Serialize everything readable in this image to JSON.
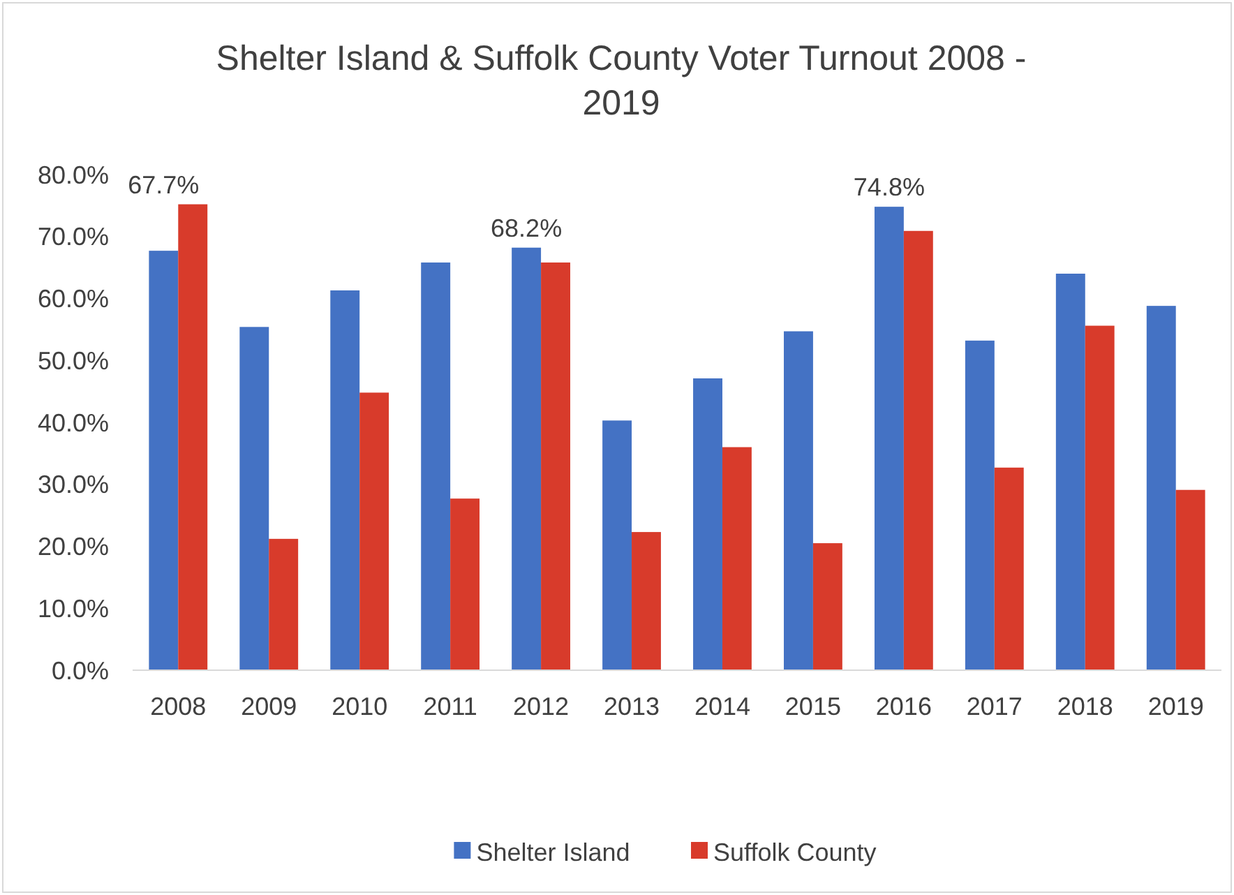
{
  "chart_data": {
    "type": "bar",
    "title": "Shelter Island & Suffolk County Voter Turnout 2008 - 2019",
    "categories": [
      "2008",
      "2009",
      "2010",
      "2011",
      "2012",
      "2013",
      "2014",
      "2015",
      "2016",
      "2017",
      "2018",
      "2019"
    ],
    "series": [
      {
        "name": "Shelter Island",
        "color": "#4472c4",
        "values": [
          67.7,
          55.4,
          61.3,
          65.8,
          68.2,
          40.3,
          47.1,
          54.7,
          74.8,
          53.2,
          64.0,
          58.8
        ],
        "value_labels": [
          "67.7%",
          null,
          null,
          null,
          "68.2%",
          null,
          null,
          null,
          "74.8%",
          null,
          null,
          null
        ]
      },
      {
        "name": "Suffolk County",
        "color": "#d83b2b",
        "values": [
          75.2,
          21.2,
          44.8,
          27.7,
          65.8,
          22.3,
          36.0,
          20.5,
          70.9,
          32.7,
          55.6,
          29.1
        ]
      }
    ],
    "ylim": [
      0,
      80
    ],
    "yticks": [
      {
        "value": 0,
        "label": "0.0%"
      },
      {
        "value": 10,
        "label": "10.0%"
      },
      {
        "value": 20,
        "label": "20.0%"
      },
      {
        "value": 30,
        "label": "30.0%"
      },
      {
        "value": 40,
        "label": "40.0%"
      },
      {
        "value": 50,
        "label": "50.0%"
      },
      {
        "value": 60,
        "label": "60.0%"
      },
      {
        "value": 70,
        "label": "70.0%"
      },
      {
        "value": 80,
        "label": "80.0%"
      }
    ],
    "legend": "bottom"
  }
}
